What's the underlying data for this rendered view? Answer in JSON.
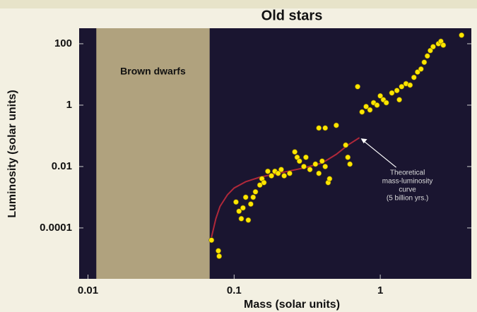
{
  "chart_data": {
    "type": "scatter",
    "title": "Old stars",
    "xlabel": "Mass (solar units)",
    "ylabel": "Luminosity (solar units)",
    "xscale": "log",
    "yscale": "log",
    "xlim": [
      0.0087,
      4.2
    ],
    "ylim": [
      2.2e-06,
      320
    ],
    "xticks": [
      0.01,
      0.1,
      1
    ],
    "yticks": [
      100,
      1,
      0.01,
      0.0001
    ],
    "background": "#1a1530",
    "shaded_region": {
      "xlim": [
        0.0114,
        0.068
      ],
      "label": "Brown dwarfs",
      "color": "#b0a27e"
    },
    "series": [
      {
        "style": "markers",
        "color": "#ffe600",
        "x": [
          0.07,
          0.078,
          0.079,
          0.103,
          0.108,
          0.112,
          0.115,
          0.12,
          0.125,
          0.13,
          0.135,
          0.14,
          0.15,
          0.155,
          0.16,
          0.17,
          0.18,
          0.19,
          0.2,
          0.21,
          0.22,
          0.24,
          0.26,
          0.27,
          0.28,
          0.3,
          0.31,
          0.33,
          0.36,
          0.38,
          0.4,
          0.42,
          0.44,
          0.45,
          0.38,
          0.42,
          0.5,
          0.58,
          0.6,
          0.62,
          0.7,
          0.75,
          0.8,
          0.85,
          0.9,
          0.95,
          1.0,
          1.05,
          1.1,
          1.2,
          1.3,
          1.35,
          1.4,
          1.5,
          1.6,
          1.7,
          1.8,
          1.9,
          2.0,
          2.1,
          2.2,
          2.3,
          2.5,
          2.6,
          2.7,
          3.6
        ],
        "values": [
          4e-05,
          1.8e-05,
          1.2e-05,
          0.0007,
          0.00035,
          0.0002,
          0.00045,
          0.001,
          0.00018,
          0.0006,
          0.001,
          0.0015,
          0.0025,
          0.004,
          0.003,
          0.007,
          0.005,
          0.007,
          0.006,
          0.008,
          0.005,
          0.006,
          0.03,
          0.02,
          0.015,
          0.01,
          0.02,
          0.008,
          0.012,
          0.006,
          0.015,
          0.01,
          0.003,
          0.004,
          0.18,
          0.18,
          0.22,
          0.05,
          0.02,
          0.012,
          4,
          0.6,
          0.9,
          0.7,
          1.2,
          1,
          2,
          1.5,
          1.2,
          2.5,
          3,
          1.5,
          4,
          5,
          4.5,
          8,
          12,
          15,
          25,
          40,
          60,
          80,
          100,
          120,
          90,
          190
        ]
      },
      {
        "style": "line",
        "color": "#b0283a",
        "x": [
          0.07,
          0.075,
          0.08,
          0.09,
          0.1,
          0.12,
          0.15,
          0.2,
          0.3,
          0.4,
          0.5,
          0.6,
          0.72
        ],
        "values": [
          5e-05,
          0.0002,
          0.0005,
          0.0012,
          0.002,
          0.0032,
          0.0045,
          0.006,
          0.009,
          0.013,
          0.025,
          0.05,
          0.087
        ]
      }
    ],
    "annotation": {
      "lines": [
        "Theoretical",
        "mass-luminosity",
        "curve",
        "(5 billion yrs.)"
      ],
      "x": 0.72,
      "y": 0.087
    }
  }
}
